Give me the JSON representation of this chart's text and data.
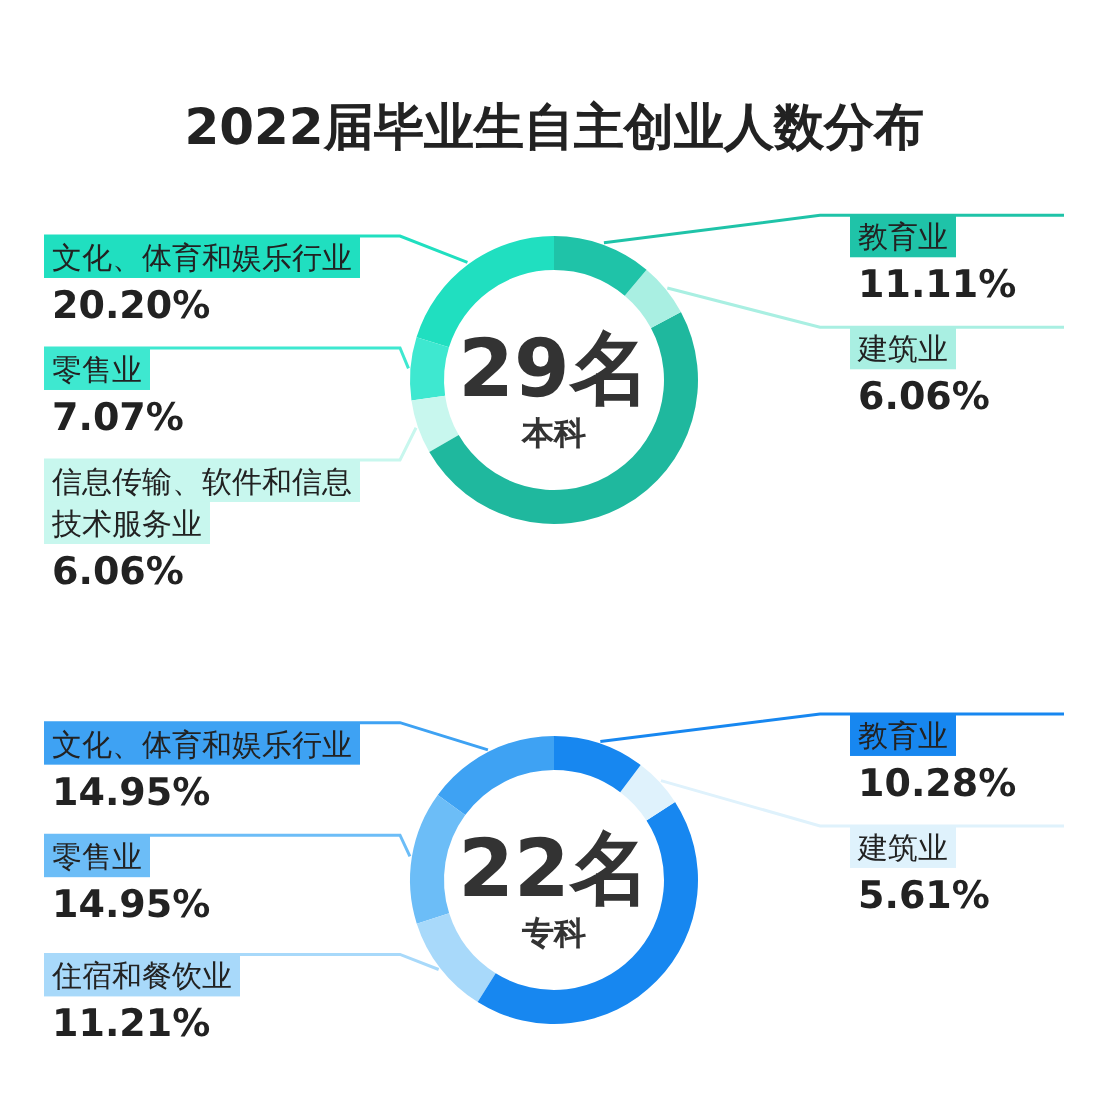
{
  "chart_data": [
    {
      "type": "donut",
      "title": "2022届毕业生自主创业人数分布",
      "categories": [
        "文化、体育和娱乐行业",
        "零售业",
        "信息传输、软件和信息技术服务业",
        null,
        "建筑业",
        "教育业"
      ],
      "values": [
        20.2,
        7.07,
        6.06,
        49.5,
        6.06,
        11.11
      ],
      "value_labels": [
        "20.20%",
        "7.07%",
        "6.06%",
        null,
        "6.06%",
        "11.11%"
      ],
      "colors": [
        "#20dfc0",
        "#3ee8d0",
        "#c8f7ee",
        "#1fb89e",
        "#a9efe2",
        "#1fc3a8"
      ],
      "annotations": [
        "29名",
        "本科"
      ]
    },
    {
      "type": "donut",
      "categories": [
        "文化、体育和娱乐行业",
        "零售业",
        "住宿和餐饮业",
        null,
        "建筑业",
        "教育业"
      ],
      "values": [
        14.95,
        14.95,
        11.21,
        43.0,
        5.61,
        10.28
      ],
      "value_labels": [
        "14.95%",
        "14.95%",
        "11.21%",
        null,
        "5.61%",
        "10.28%"
      ],
      "colors": [
        "#3ea2f3",
        "#6cbdf7",
        "#a8d9fa",
        "#1787f0",
        "#dff2fc",
        "#1787f0"
      ],
      "annotations": [
        "22名",
        "专科"
      ]
    }
  ]
}
